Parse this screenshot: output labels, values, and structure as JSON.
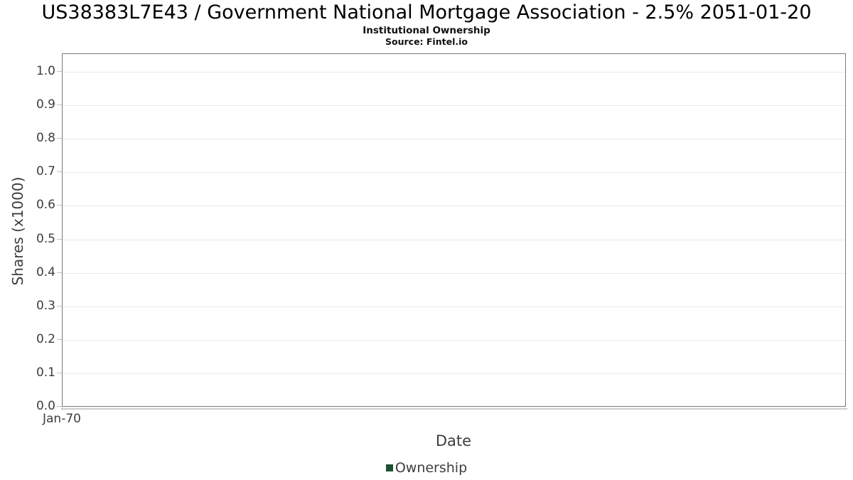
{
  "header": {
    "title": "US38383L7E43 / Government National Mortgage Association - 2.5% 2051-01-20",
    "subtitle": "Institutional Ownership",
    "source": "Source: Fintel.io"
  },
  "chart_data": {
    "type": "line",
    "title": "US38383L7E43 / Government National Mortgage Association - 2.5% 2051-01-20",
    "subtitle": "Institutional Ownership",
    "source": "Source: Fintel.io",
    "xlabel": "Date",
    "ylabel": "Shares (x1000)",
    "ylim": [
      0.0,
      1.05
    ],
    "grid": true,
    "yticks": [
      0.0,
      0.1,
      0.2,
      0.3,
      0.4,
      0.5,
      0.6,
      0.7,
      0.8,
      0.9,
      1.0
    ],
    "ytick_labels": [
      "0.0",
      "0.1",
      "0.2",
      "0.3",
      "0.4",
      "0.5",
      "0.6",
      "0.7",
      "0.8",
      "0.9",
      "1.0"
    ],
    "xtick_labels": [
      "Jan-70"
    ],
    "series": [
      {
        "name": "Ownership",
        "x": [],
        "values": []
      }
    ],
    "legend": {
      "position": "bottom",
      "entries": [
        {
          "label": "Ownership",
          "color": "#1b5130"
        }
      ]
    },
    "colors": {
      "plot_border": "#7a7a7a",
      "gridline": "#e9e9e9",
      "tick_mark": "#c4c4c4",
      "axis_line": "#cdcdcd",
      "text": "#3d3d3d",
      "series_green": "#1b5130"
    }
  }
}
